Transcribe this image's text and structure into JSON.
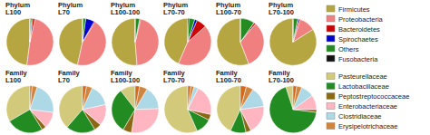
{
  "chart_data": [
    {
      "type": "pie",
      "title": "Phylum\nL100",
      "categories": [
        "Firmicutes",
        "Proteobacteria",
        "Bacteroidetes",
        "Spirochaetes",
        "Others",
        "Fusobacteria"
      ],
      "values": [
        48.1,
        48.79,
        1.54,
        0.67,
        1.21,
        0.02
      ],
      "colors": [
        "#b5a642",
        "#f08080",
        "#cc0000",
        "#0000cc",
        "#228b22",
        "#111111"
      ]
    },
    {
      "type": "pie",
      "title": "Phylum\nL70",
      "categories": [
        "Firmicutes",
        "Proteobacteria",
        "Bacteroidetes",
        "Spirochaetes",
        "Others",
        "Fusobacteria"
      ],
      "values": [
        46.1,
        43.98,
        0.73,
        6.02,
        2.08,
        0.07
      ],
      "colors": [
        "#b5a642",
        "#f08080",
        "#cc0000",
        "#0000cc",
        "#228b22",
        "#111111"
      ]
    },
    {
      "type": "pie",
      "title": "Phylum\nL100-100",
      "categories": [
        "Firmicutes",
        "Proteobacteria",
        "Bacteroidetes",
        "Spirochaetes",
        "Others",
        "Fusobacteria"
      ],
      "values": [
        51.18,
        44.82,
        0.73,
        0.02,
        3.02,
        0.03
      ],
      "colors": [
        "#b5a642",
        "#f08080",
        "#cc0000",
        "#0000cc",
        "#228b22",
        "#111111"
      ]
    },
    {
      "type": "pie",
      "title": "Phylum\nL70-70",
      "categories": [
        "Firmicutes",
        "Proteobacteria",
        "Bacteroidetes",
        "Spirochaetes",
        "Others",
        "Fusobacteria"
      ],
      "values": [
        17.88,
        17.67,
        2.84,
        0.73,
        1.65,
        0.28
      ],
      "colors": [
        "#b5a642",
        "#f08080",
        "#cc0000",
        "#0000cc",
        "#228b22",
        "#111111"
      ]
    },
    {
      "type": "pie",
      "title": "Phylum\nL100-70",
      "categories": [
        "Firmicutes",
        "Proteobacteria",
        "Bacteroidetes",
        "Spirochaetes",
        "Others",
        "Fusobacteria"
      ],
      "values": [
        53.61,
        31.76,
        1.24,
        0.03,
        9.24,
        0.17
      ],
      "colors": [
        "#b5a642",
        "#f08080",
        "#cc0000",
        "#0000cc",
        "#228b22",
        "#111111"
      ]
    },
    {
      "type": "pie",
      "title": "Phylum\nL70-100",
      "categories": [
        "Firmicutes",
        "Proteobacteria",
        "Bacteroidetes",
        "Spirochaetes",
        "Others",
        "Fusobacteria"
      ],
      "values": [
        83.67,
        10.92,
        1.01,
        0.82,
        3.15,
        0.08
      ],
      "colors": [
        "#b5a642",
        "#f08080",
        "#cc0000",
        "#0000cc",
        "#228b22",
        "#111111"
      ]
    },
    {
      "type": "pie",
      "title": "Family\nL100",
      "categories": [
        "Pasteurellaceae",
        "Lactobacillaceae",
        "Peptostreptococcaceae",
        "Enterobacteriaceae",
        "Clostridiaceae",
        "Erysipelotrichaceae",
        null
      ],
      "values": [
        33.37,
        25.37,
        3.0,
        11.3,
        22.0,
        3.5,
        1.46
      ],
      "colors": [
        "#d2c97a",
        "#228b22",
        "#8b6914",
        "#ffb6c1",
        "#add8e6",
        "#cd853f",
        "#d2691e"
      ]
    },
    {
      "type": "pie",
      "title": "Family\nL70",
      "categories": [
        "Pasteurellaceae",
        "Lactobacillaceae",
        "Peptostreptococcaceae",
        "Enterobacteriaceae",
        "Clostridiaceae",
        "Erysipelotrichaceae",
        null
      ],
      "values": [
        38.67,
        20.07,
        5.0,
        14.61,
        15.0,
        4.0,
        2.65
      ],
      "colors": [
        "#d2c97a",
        "#228b22",
        "#8b6914",
        "#ffb6c1",
        "#add8e6",
        "#cd853f",
        "#d2691e"
      ]
    },
    {
      "type": "pie",
      "title": "Family\nL100-100",
      "categories": [
        "Pasteurellaceae",
        "Lactobacillaceae",
        "Peptostreptococcaceae",
        "Enterobacteriaceae",
        "Clostridiaceae",
        "Erysipelotrichaceae",
        null
      ],
      "values": [
        10.48,
        31.08,
        6.0,
        28.05,
        16.0,
        5.39,
        3.0
      ],
      "colors": [
        "#d2c97a",
        "#228b22",
        "#8b6914",
        "#ffb6c1",
        "#add8e6",
        "#cd853f",
        "#d2691e"
      ]
    },
    {
      "type": "pie",
      "title": "Family\nL70-70",
      "categories": [
        "Pasteurellaceae",
        "Lactobacillaceae",
        "Peptostreptococcaceae",
        "Enterobacteriaceae",
        "Clostridiaceae",
        "Erysipelotrichaceae",
        null
      ],
      "values": [
        56.61,
        11.0,
        4.0,
        21.15,
        3.0,
        2.2,
        2.04
      ],
      "colors": [
        "#d2c97a",
        "#228b22",
        "#8b6914",
        "#ffb6c1",
        "#add8e6",
        "#cd853f",
        "#d2691e"
      ]
    },
    {
      "type": "pie",
      "title": "Family\nL100-70",
      "categories": [
        "Pasteurellaceae",
        "Lactobacillaceae",
        "Peptostreptococcaceae",
        "Enterobacteriaceae",
        "Clostridiaceae",
        "Erysipelotrichaceae",
        null
      ],
      "values": [
        43.14,
        10.74,
        3.5,
        19.74,
        14.0,
        4.88,
        4.0
      ],
      "colors": [
        "#d2c97a",
        "#228b22",
        "#8b6914",
        "#ffb6c1",
        "#add8e6",
        "#cd853f",
        "#d2691e"
      ]
    },
    {
      "type": "pie",
      "title": "Family\nL70-100",
      "categories": [
        "Pasteurellaceae",
        "Lactobacillaceae",
        "Peptostreptococcaceae",
        "Enterobacteriaceae",
        "Clostridiaceae",
        "Erysipelotrichaceae",
        null
      ],
      "values": [
        5.0,
        68.0,
        2.0,
        10.0,
        9.0,
        3.5,
        2.5
      ],
      "colors": [
        "#d2c97a",
        "#228b22",
        "#8b6914",
        "#ffb6c1",
        "#add8e6",
        "#cd853f",
        "#d2691e"
      ]
    }
  ]
}
